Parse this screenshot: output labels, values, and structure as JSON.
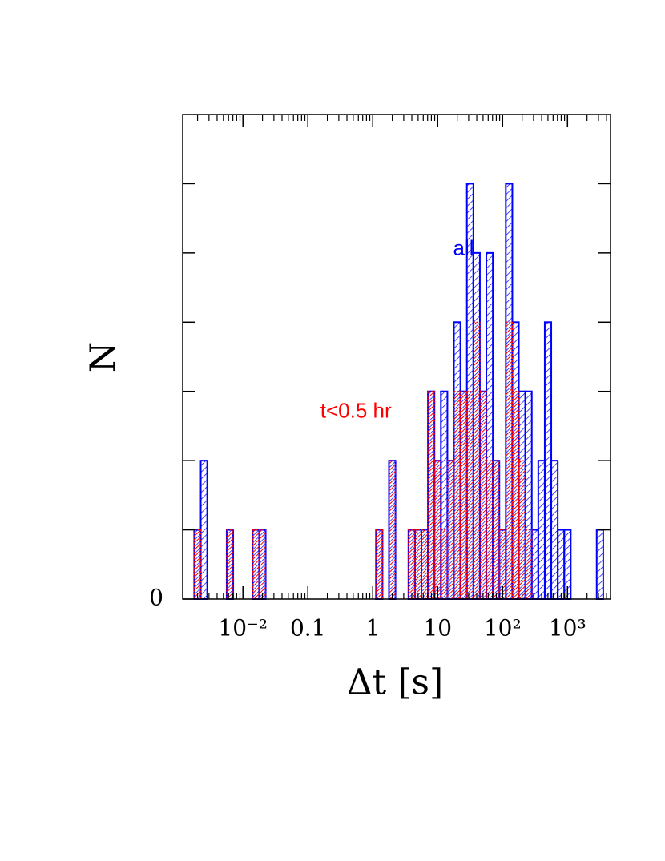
{
  "chart_data": {
    "type": "histogram",
    "xlabel": "Δt   [s]",
    "ylabel": "N",
    "log_x": true,
    "xlim": [
      0.00118,
      4600
    ],
    "ylim": [
      0,
      7
    ],
    "xticks": [
      {
        "value": 0.01,
        "label": "10⁻²"
      },
      0.1,
      1,
      10,
      {
        "value": 100,
        "label": "10²"
      },
      {
        "value": 1000,
        "label": "10³"
      }
    ],
    "yticks": [
      0
    ],
    "yticks_unlabeled": [
      1,
      2,
      3,
      4,
      5,
      6
    ],
    "bins": [
      0.001778,
      0.002239,
      0.002818,
      0.003548,
      0.004467,
      0.005623,
      0.007079,
      0.008913,
      0.01122,
      0.01413,
      0.01778,
      0.02239,
      0.02818,
      0.03548,
      0.04467,
      0.05623,
      0.07079,
      0.08913,
      0.1122,
      0.1413,
      0.1778,
      0.2239,
      0.2818,
      0.3548,
      0.4467,
      0.5623,
      0.7079,
      0.8913,
      1.122,
      1.413,
      1.778,
      2.239,
      2.818,
      3.548,
      4.467,
      5.623,
      7.079,
      8.913,
      11.22,
      14.13,
      17.78,
      22.39,
      28.18,
      35.48,
      44.67,
      56.23,
      70.79,
      89.13,
      112.2,
      141.3,
      177.8,
      223.9,
      281.8,
      354.8,
      446.7,
      562.3,
      707.9,
      891.3,
      1122,
      1413,
      1778,
      2239,
      2818,
      3548,
      4467
    ],
    "series": [
      {
        "name": "all",
        "color": "#0000ff",
        "values": [
          1,
          2,
          0,
          0,
          0,
          1,
          0,
          0,
          0,
          1,
          1,
          0,
          0,
          0,
          0,
          0,
          0,
          0,
          0,
          0,
          0,
          0,
          0,
          0,
          0,
          0,
          0,
          0,
          1,
          0,
          2,
          0,
          0,
          1,
          1,
          1,
          3,
          2,
          3,
          2,
          4,
          3,
          6,
          5,
          3,
          5,
          2,
          1,
          6,
          4,
          3,
          3,
          1,
          2,
          4,
          2,
          1,
          1,
          0,
          0,
          0,
          0,
          1,
          0
        ]
      },
      {
        "name": "t<0.5 hr",
        "color": "#ff0000",
        "values": [
          1,
          0,
          0,
          0,
          0,
          1,
          0,
          0,
          0,
          1,
          1,
          0,
          0,
          0,
          0,
          0,
          0,
          0,
          0,
          0,
          0,
          0,
          0,
          0,
          0,
          0,
          0,
          0,
          1,
          0,
          2,
          0,
          0,
          1,
          1,
          1,
          3,
          2,
          1,
          2,
          3,
          3,
          3,
          4,
          3,
          2,
          2,
          1,
          4,
          3,
          2,
          1,
          0,
          0,
          0,
          0,
          0,
          0,
          0,
          0,
          0,
          0,
          0,
          0
        ]
      }
    ],
    "annotations": [
      {
        "text": "all",
        "color": "#0000ff",
        "x": 25,
        "y": 5.05
      },
      {
        "text": "t<0.5 hr",
        "color": "#ff0000",
        "x": 0.55,
        "y": 2.7
      }
    ]
  }
}
